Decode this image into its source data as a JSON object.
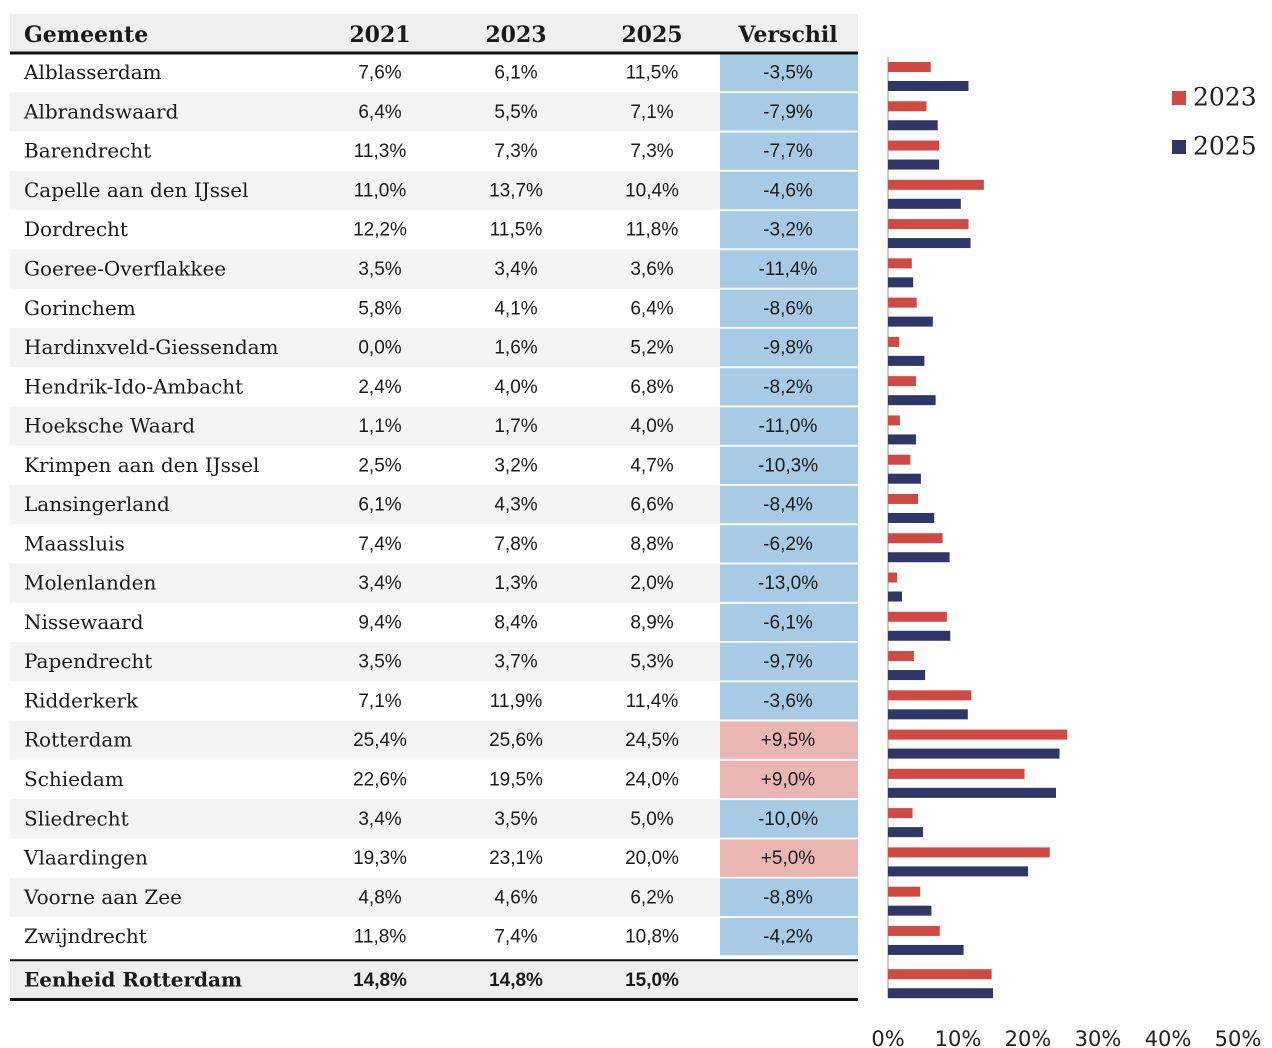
{
  "table": {
    "header": [
      "Gemeente",
      "2021",
      "2023",
      "2025",
      "Verschil"
    ],
    "rows": [
      [
        "Alblasserdam",
        "7,6%",
        "6,1%",
        "11,5%",
        "-3,5%"
      ],
      [
        "Albrandswaard",
        "6,4%",
        "5,5%",
        "7,1%",
        "-7,9%"
      ],
      [
        "Barendrecht",
        "11,3%",
        "7,3%",
        "7,3%",
        "-7,7%"
      ],
      [
        "Capelle aan den IJssel",
        "11,0%",
        "13,7%",
        "10,4%",
        "-4,6%"
      ],
      [
        "Dordrecht",
        "12,2%",
        "11,5%",
        "11,8%",
        "-3,2%"
      ],
      [
        "Goeree-Overflakkee",
        "3,5%",
        "3,4%",
        "3,6%",
        "-11,4%"
      ],
      [
        "Gorinchem",
        "5,8%",
        "4,1%",
        "6,4%",
        "-8,6%"
      ],
      [
        "Hardinxveld-Giessendam",
        "0,0%",
        "1,6%",
        "5,2%",
        "-9,8%"
      ],
      [
        "Hendrik-Ido-Ambacht",
        "2,4%",
        "4,0%",
        "6,8%",
        "-8,2%"
      ],
      [
        "Hoeksche Waard",
        "1,1%",
        "1,7%",
        "4,0%",
        "-11,0%"
      ],
      [
        "Krimpen aan den IJssel",
        "2,5%",
        "3,2%",
        "4,7%",
        "-10,3%"
      ],
      [
        "Lansingerland",
        "6,1%",
        "4,3%",
        "6,6%",
        "-8,4%"
      ],
      [
        "Maassluis",
        "7,4%",
        "7,8%",
        "8,8%",
        "-6,2%"
      ],
      [
        "Molenlanden",
        "3,4%",
        "1,3%",
        "2,0%",
        "-13,0%"
      ],
      [
        "Nissewaard",
        "9,4%",
        "8,4%",
        "8,9%",
        "-6,1%"
      ],
      [
        "Papendrecht",
        "3,5%",
        "3,7%",
        "5,3%",
        "-9,7%"
      ],
      [
        "Ridderkerk",
        "7,1%",
        "11,9%",
        "11,4%",
        "-3,6%"
      ],
      [
        "Rotterdam",
        "25,4%",
        "25,6%",
        "24,5%",
        "+9,5%"
      ],
      [
        "Schiedam",
        "22,6%",
        "19,5%",
        "24,0%",
        "+9,0%"
      ],
      [
        "Sliedrecht",
        "3,4%",
        "3,5%",
        "5,0%",
        "-10,0%"
      ],
      [
        "Vlaardingen",
        "19,3%",
        "23,1%",
        "20,0%",
        "+5,0%"
      ],
      [
        "Voorne aan Zee",
        "4,8%",
        "4,6%",
        "6,2%",
        "-8,8%"
      ],
      [
        "Zwijndrecht",
        "11,8%",
        "7,4%",
        "10,8%",
        "-4,2%"
      ]
    ],
    "verschil_colors": [
      "#a7cbe5",
      "#a7cbe5",
      "#a7cbe5",
      "#a7cbe5",
      "#a7cbe5",
      "#a7cbe5",
      "#a7cbe5",
      "#a7cbe5",
      "#a7cbe5",
      "#a7cbe5",
      "#a7cbe5",
      "#a7cbe5",
      "#a7cbe5",
      "#a7cbe5",
      "#a7cbe5",
      "#a7cbe5",
      "#a7cbe5",
      "#e9b6b4",
      "#e9b6b4",
      "#a7cbe5",
      "#e9b6b4",
      "#a7cbe5",
      "#a7cbe5"
    ],
    "total": [
      "Eenheid Rotterdam",
      "14,8%",
      "14,8%",
      "15,0%"
    ]
  },
  "chart_data": {
    "type": "bar",
    "orientation": "horizontal",
    "series": [
      {
        "name": "2023",
        "color": "#cf4a43",
        "values": [
          6.1,
          5.5,
          7.3,
          13.7,
          11.5,
          3.4,
          4.1,
          1.6,
          4.0,
          1.7,
          3.2,
          4.3,
          7.8,
          1.3,
          8.4,
          3.7,
          11.9,
          25.6,
          19.5,
          3.5,
          23.1,
          4.6,
          7.4,
          14.8
        ]
      },
      {
        "name": "2025",
        "color": "#2f3768",
        "values": [
          11.5,
          7.1,
          7.3,
          10.4,
          11.8,
          3.6,
          6.4,
          5.2,
          6.8,
          4.0,
          4.7,
          6.6,
          8.8,
          2.0,
          8.9,
          5.3,
          11.4,
          24.5,
          24.0,
          5.0,
          20.0,
          6.2,
          10.8,
          15.0
        ]
      }
    ],
    "xlim": [
      0,
      50
    ],
    "xticks": [
      {
        "value": 0,
        "label": "0%"
      },
      {
        "value": 10,
        "label": "10%"
      },
      {
        "value": 20,
        "label": "20%"
      },
      {
        "value": 30,
        "label": "30%"
      },
      {
        "value": 40,
        "label": "40%"
      },
      {
        "value": 50,
        "label": "50%"
      }
    ]
  }
}
